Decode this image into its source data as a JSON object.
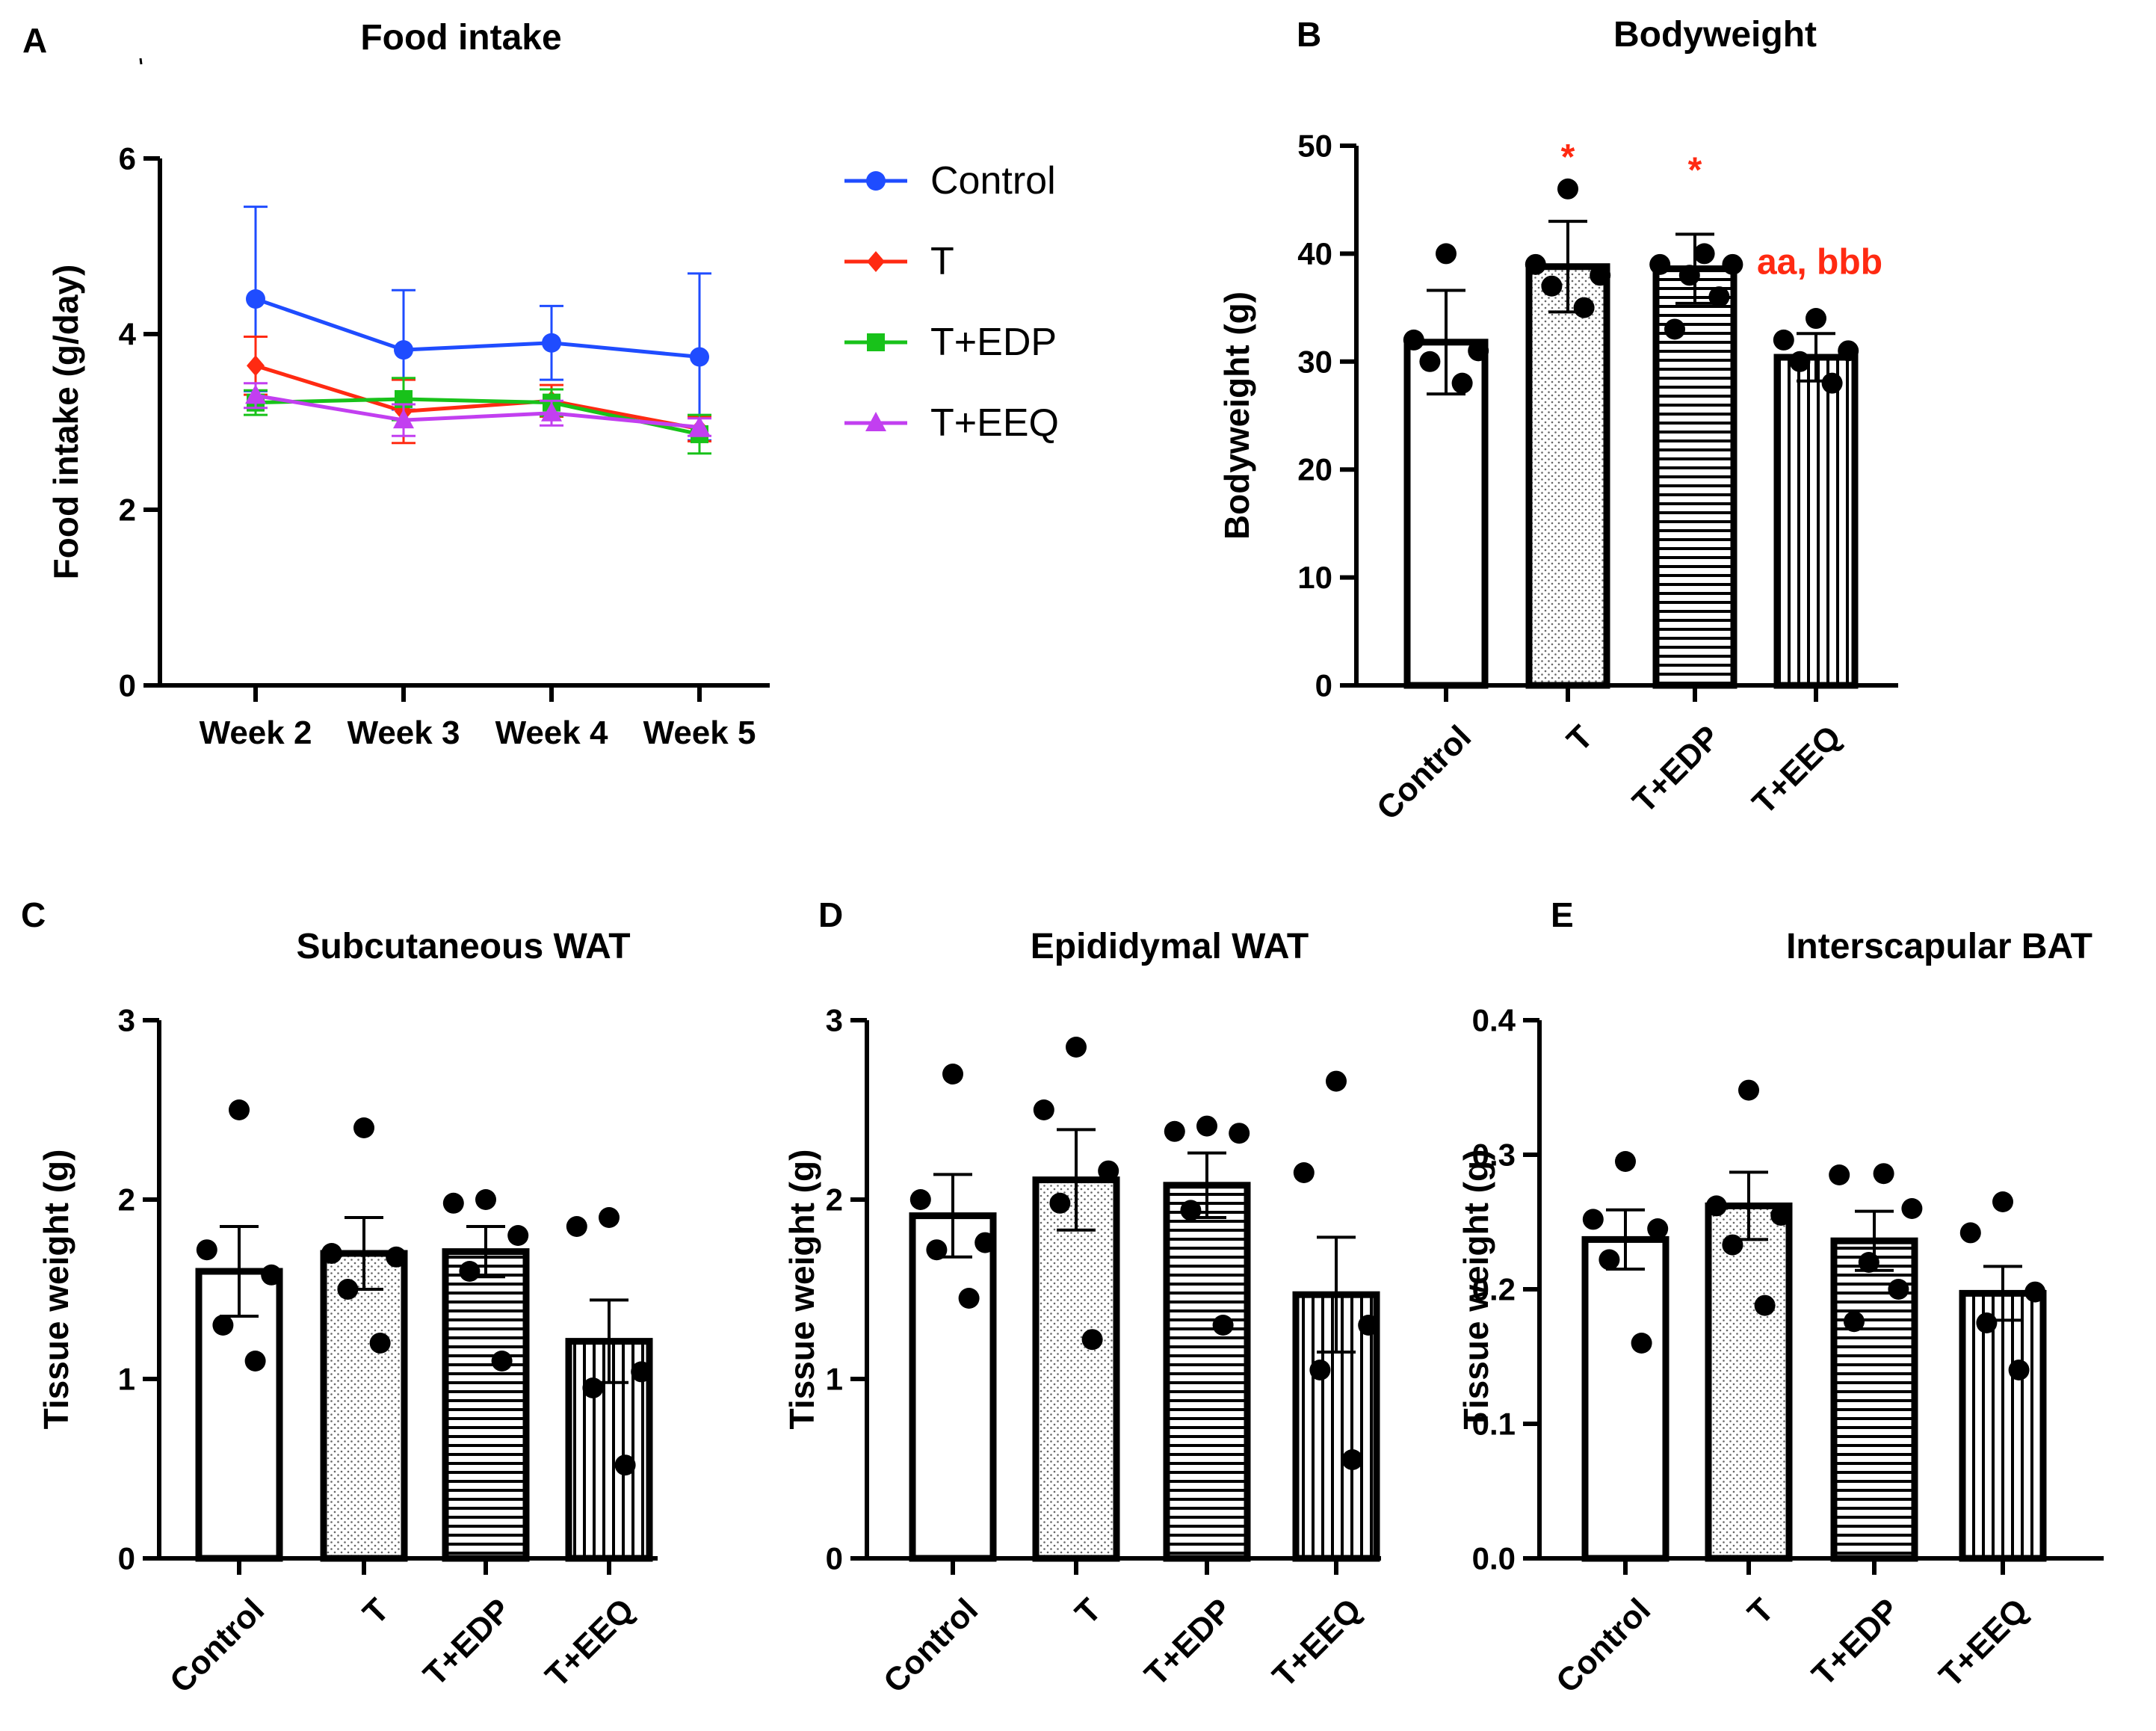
{
  "chart_data": [
    {
      "panel": "A",
      "type": "line",
      "title": "Food intake",
      "xlabel": "",
      "ylabel": "Food intake (g/day)",
      "categories": [
        "Week 2",
        "Week 3",
        "Week 4",
        "Week 5"
      ],
      "ylim": [
        0,
        6
      ],
      "yticks": [
        "0",
        "2",
        "4",
        "6"
      ],
      "series": [
        {
          "name": "Control",
          "color": "#1f4cff",
          "marker": "circle",
          "values": [
            4.4,
            3.82,
            3.9,
            3.74
          ],
          "errors": [
            1.05,
            0.68,
            0.42,
            0.95
          ]
        },
        {
          "name": "T",
          "color": "#ff2a12",
          "marker": "diamond",
          "values": [
            3.64,
            3.12,
            3.24,
            2.92
          ],
          "errors": [
            0.33,
            0.36,
            0.18,
            0.14
          ]
        },
        {
          "name": "T+EDP",
          "color": "#18c21a",
          "marker": "square",
          "values": [
            3.22,
            3.26,
            3.22,
            2.86
          ],
          "errors": [
            0.14,
            0.24,
            0.15,
            0.22
          ]
        },
        {
          "name": "T+EEQ",
          "color": "#c23ff0",
          "marker": "triangle",
          "values": [
            3.3,
            3.02,
            3.1,
            2.94
          ],
          "errors": [
            0.14,
            0.18,
            0.14,
            0.1
          ]
        }
      ]
    },
    {
      "panel": "B",
      "type": "bar",
      "title": "Bodyweight",
      "xlabel": "",
      "ylabel": "Bodyweight (g)",
      "categories": [
        "Control",
        "T",
        "T+EDP",
        "T+EEQ"
      ],
      "patterns": [
        "none",
        "dots",
        "hlines",
        "vlines"
      ],
      "values": [
        31.8,
        38.8,
        38.6,
        30.4
      ],
      "errors": [
        4.8,
        4.2,
        3.2,
        2.2
      ],
      "points": [
        [
          40,
          32,
          31,
          30,
          28
        ],
        [
          46,
          39,
          38,
          37,
          35
        ],
        [
          40,
          39,
          39,
          38,
          36,
          33
        ],
        [
          34,
          32,
          31,
          30,
          28
        ]
      ],
      "annotations": [
        "",
        "*",
        "*",
        "aa, bbb"
      ],
      "ylim": [
        0,
        50
      ],
      "yticks": [
        "0",
        "10",
        "20",
        "30",
        "40",
        "50"
      ]
    },
    {
      "panel": "C",
      "type": "bar",
      "title": "Subcutaneous WAT",
      "xlabel": "",
      "ylabel": "Tissue weight (g)",
      "categories": [
        "Control",
        "T",
        "T+EDP",
        "T+EEQ"
      ],
      "patterns": [
        "none",
        "dots",
        "hlines",
        "vlines"
      ],
      "values": [
        1.6,
        1.7,
        1.71,
        1.21
      ],
      "errors": [
        0.25,
        0.2,
        0.14,
        0.23
      ],
      "points": [
        [
          2.5,
          1.72,
          1.58,
          1.3,
          1.1
        ],
        [
          2.4,
          1.7,
          1.68,
          1.5,
          1.2
        ],
        [
          2.0,
          1.98,
          1.8,
          1.6,
          1.1
        ],
        [
          1.9,
          1.85,
          1.04,
          0.95,
          0.52
        ]
      ],
      "ylim": [
        0,
        3
      ],
      "yticks": [
        "0",
        "1",
        "2",
        "3"
      ]
    },
    {
      "panel": "D",
      "type": "bar",
      "title": "Epididymal WAT",
      "xlabel": "",
      "ylabel": "Tissue weight (g)",
      "categories": [
        "Control",
        "T",
        "T+EDP",
        "T+EEQ"
      ],
      "patterns": [
        "none",
        "dots",
        "hlines",
        "vlines"
      ],
      "values": [
        1.91,
        2.11,
        2.08,
        1.47
      ],
      "errors": [
        0.23,
        0.28,
        0.18,
        0.32
      ],
      "points": [
        [
          2.7,
          2.0,
          1.76,
          1.72,
          1.45
        ],
        [
          2.85,
          2.5,
          2.16,
          1.98,
          1.22
        ],
        [
          2.41,
          2.38,
          2.37,
          1.94,
          1.3
        ],
        [
          2.66,
          2.15,
          1.3,
          1.05,
          0.55
        ]
      ],
      "ylim": [
        0,
        3
      ],
      "yticks": [
        "0",
        "1",
        "2",
        "3"
      ]
    },
    {
      "panel": "E",
      "type": "bar",
      "title": "Interscapular BAT",
      "xlabel": "",
      "ylabel": "Tissue weight (g)",
      "categories": [
        "Control",
        "T",
        "T+EDP",
        "T+EEQ"
      ],
      "patterns": [
        "none",
        "dots",
        "hlines",
        "vlines"
      ],
      "values": [
        0.237,
        0.262,
        0.236,
        0.197
      ],
      "errors": [
        0.022,
        0.025,
        0.022,
        0.02
      ],
      "points": [
        [
          0.295,
          0.252,
          0.245,
          0.222,
          0.16
        ],
        [
          0.348,
          0.262,
          0.255,
          0.233,
          0.188
        ],
        [
          0.286,
          0.285,
          0.26,
          0.22,
          0.2,
          0.176
        ],
        [
          0.265,
          0.242,
          0.198,
          0.175,
          0.14
        ]
      ],
      "ylim": [
        0,
        0.4
      ],
      "yticks": [
        "0.0",
        "0.1",
        "0.2",
        "0.3",
        "0.4"
      ]
    }
  ]
}
